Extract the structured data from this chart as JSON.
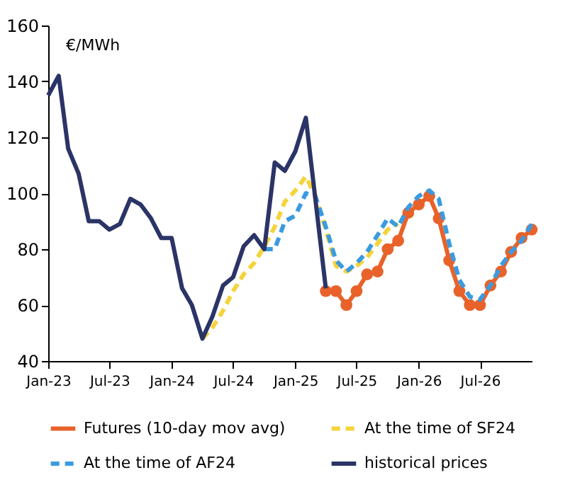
{
  "chart_data": {
    "type": "line",
    "ylabel": "€/MWh",
    "xlim": [
      "2023-01",
      "2026-12"
    ],
    "xticks": [
      {
        "value": "2023-01",
        "label": "Jan-23"
      },
      {
        "value": "2023-07",
        "label": "Jul-23"
      },
      {
        "value": "2024-01",
        "label": "Jan-24"
      },
      {
        "value": "2024-07",
        "label": "Jul-24"
      },
      {
        "value": "2025-01",
        "label": "Jan-25"
      },
      {
        "value": "2025-07",
        "label": "Jul-25"
      },
      {
        "value": "2026-01",
        "label": "Jan-26"
      },
      {
        "value": "2026-07",
        "label": "Jul-26"
      }
    ],
    "ylim": [
      40,
      160
    ],
    "yticks": [
      40,
      60,
      80,
      100,
      120,
      140,
      160
    ],
    "legend": "bottom",
    "grid": false,
    "series": [
      {
        "name": "Futures (10-day mov avg)",
        "color": "#e8622a",
        "marker": "circle",
        "line_style": "solid",
        "x": [
          "2025-04",
          "2025-05",
          "2025-06",
          "2025-07",
          "2025-08",
          "2025-09",
          "2025-10",
          "2025-11",
          "2025-12",
          "2026-01",
          "2026-02",
          "2026-03",
          "2026-04",
          "2026-05",
          "2026-06",
          "2026-07",
          "2026-08",
          "2026-09",
          "2026-10",
          "2026-11",
          "2026-12"
        ],
        "values": [
          65,
          65,
          60,
          65,
          71,
          72,
          80,
          83,
          93,
          96,
          99,
          91,
          76,
          65,
          60,
          60,
          67,
          72,
          79,
          84,
          87
        ]
      },
      {
        "name": "At the time of SF24",
        "color": "#f5d33a",
        "marker": "none",
        "line_style": "dashed",
        "x": [
          "2024-04",
          "2024-05",
          "2024-06",
          "2024-07",
          "2024-08",
          "2024-09",
          "2024-10",
          "2024-11",
          "2024-12",
          "2025-01",
          "2025-02",
          "2025-03",
          "2025-04",
          "2025-05",
          "2025-06",
          "2025-07",
          "2025-08",
          "2025-09",
          "2025-10",
          "2025-11"
        ],
        "values": [
          48,
          52,
          58,
          65,
          71,
          75,
          81,
          88,
          97,
          101,
          106,
          99,
          87,
          74,
          72,
          74,
          77,
          82,
          87,
          89
        ]
      },
      {
        "name": "At the time of AF24",
        "color": "#3a9be0",
        "marker": "none",
        "line_style": "dashed",
        "x": [
          "2024-10",
          "2024-11",
          "2024-12",
          "2025-01",
          "2025-02",
          "2025-03",
          "2025-04",
          "2025-05",
          "2025-06",
          "2025-07",
          "2025-08",
          "2025-09",
          "2025-10",
          "2025-11",
          "2025-12",
          "2026-01",
          "2026-02",
          "2026-03",
          "2026-04",
          "2026-05",
          "2026-06",
          "2026-07",
          "2026-08",
          "2026-09",
          "2026-10",
          "2026-11",
          "2026-12"
        ],
        "values": [
          80,
          80,
          90,
          92,
          100,
          99,
          88,
          76,
          72,
          75,
          79,
          85,
          91,
          88,
          95,
          99,
          101,
          98,
          82,
          69,
          63,
          62,
          67,
          74,
          79,
          83,
          89
        ]
      },
      {
        "name": "historical prices",
        "color": "#2b3466",
        "marker": "none",
        "line_style": "solid",
        "x": [
          "2023-01",
          "2023-02",
          "2023-03",
          "2023-04",
          "2023-05",
          "2023-06",
          "2023-07",
          "2023-08",
          "2023-09",
          "2023-10",
          "2023-11",
          "2023-12",
          "2024-01",
          "2024-02",
          "2024-03",
          "2024-04",
          "2024-05",
          "2024-06",
          "2024-07",
          "2024-08",
          "2024-09",
          "2024-10",
          "2024-11",
          "2024-12",
          "2025-01",
          "2025-02",
          "2025-04"
        ],
        "values": [
          135,
          142,
          116,
          107,
          90,
          90,
          87,
          89,
          98,
          96,
          91,
          84,
          84,
          66,
          60,
          48,
          56,
          67,
          70,
          81,
          85,
          80,
          111,
          108,
          115,
          127,
          66
        ]
      }
    ]
  }
}
